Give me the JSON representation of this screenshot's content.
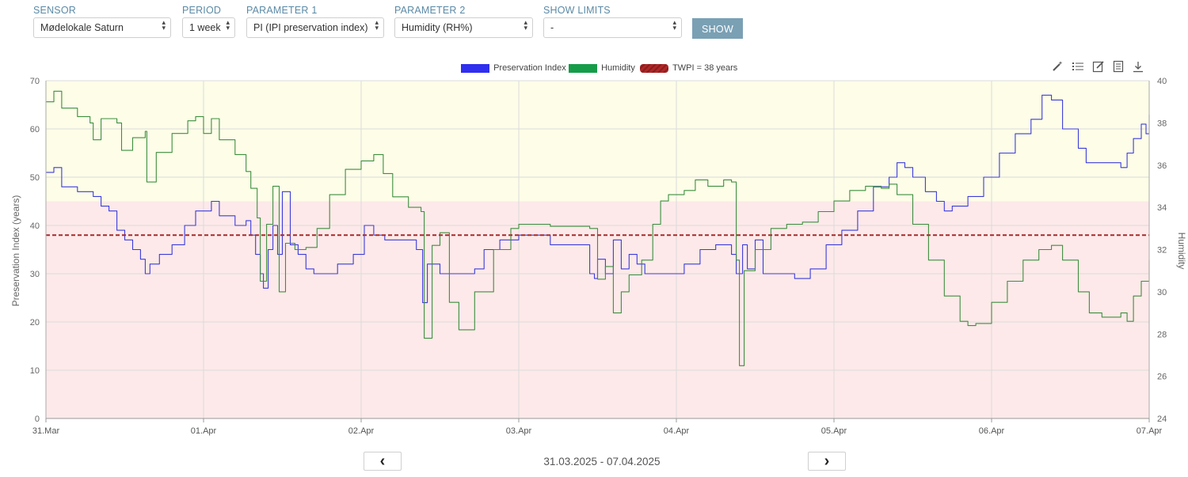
{
  "controls": {
    "sensor": {
      "label": "SENSOR",
      "value": "Mødelokale Saturn"
    },
    "period": {
      "label": "PERIOD",
      "value": "1 week"
    },
    "param1": {
      "label": "PARAMETER 1",
      "value": "PI (IPI preservation index)"
    },
    "param2": {
      "label": "PARAMETER 2",
      "value": "Humidity (RH%)"
    },
    "limits": {
      "label": "SHOW LIMITS",
      "value": "-"
    },
    "show_button": "SHOW"
  },
  "legend": {
    "pi": "Preservation Index",
    "humidity": "Humidity",
    "twpi": "TWPI = 38 years"
  },
  "toolbar": [
    "magic-wand-icon",
    "list-icon",
    "edit-icon",
    "document-icon",
    "download-icon"
  ],
  "navigation": {
    "prev": "‹",
    "next": "›",
    "range": "31.03.2025 - 07.04.2025"
  },
  "colors": {
    "pi": "#3b3bdb",
    "humidity": "#3e8e3e",
    "twpi": "#a52a2a",
    "zone_upper": "#fdfde8",
    "zone_lower": "#fde9e9"
  },
  "chart_data": {
    "type": "line",
    "xlabel": "",
    "ylabel_left": "Preservation Index (years)",
    "ylabel_right": "Humidity",
    "x_ticks": [
      "31.Mar",
      "01.Apr",
      "02.Apr",
      "03.Apr",
      "04.Apr",
      "05.Apr",
      "06.Apr",
      "07.Apr"
    ],
    "x_range_days": [
      0,
      7
    ],
    "left_ylim": [
      0,
      70
    ],
    "left_ticks": [
      0,
      10,
      20,
      30,
      40,
      50,
      60,
      70
    ],
    "right_ylim": [
      24,
      40
    ],
    "right_ticks": [
      24,
      26,
      28,
      30,
      32,
      34,
      36,
      38,
      40
    ],
    "grid": true,
    "reference_line": {
      "name": "TWPI = 38 years",
      "value": 38
    },
    "zones": [
      {
        "from": 45,
        "to": 70,
        "color": "#fdfde8"
      },
      {
        "from": 0,
        "to": 45,
        "color": "#fde9e9"
      }
    ],
    "series": [
      {
        "name": "Preservation Index",
        "axis": "left",
        "points": [
          [
            0,
            51
          ],
          [
            0.05,
            52
          ],
          [
            0.1,
            48
          ],
          [
            0.2,
            47
          ],
          [
            0.3,
            46
          ],
          [
            0.35,
            44
          ],
          [
            0.4,
            43
          ],
          [
            0.45,
            39
          ],
          [
            0.5,
            37
          ],
          [
            0.55,
            35
          ],
          [
            0.6,
            33
          ],
          [
            0.63,
            30
          ],
          [
            0.66,
            32
          ],
          [
            0.72,
            34
          ],
          [
            0.8,
            36
          ],
          [
            0.88,
            40
          ],
          [
            0.95,
            43
          ],
          [
            1.05,
            45
          ],
          [
            1.1,
            42
          ],
          [
            1.2,
            40
          ],
          [
            1.27,
            41
          ],
          [
            1.3,
            38
          ],
          [
            1.33,
            34
          ],
          [
            1.36,
            30
          ],
          [
            1.38,
            27
          ],
          [
            1.41,
            35
          ],
          [
            1.44,
            40
          ],
          [
            1.47,
            34
          ],
          [
            1.5,
            47
          ],
          [
            1.55,
            36
          ],
          [
            1.6,
            34
          ],
          [
            1.65,
            31
          ],
          [
            1.7,
            30
          ],
          [
            1.78,
            30
          ],
          [
            1.85,
            32
          ],
          [
            1.95,
            34
          ],
          [
            2.02,
            40
          ],
          [
            2.08,
            38
          ],
          [
            2.15,
            37
          ],
          [
            2.2,
            37
          ],
          [
            2.3,
            37
          ],
          [
            2.35,
            35
          ],
          [
            2.39,
            24
          ],
          [
            2.42,
            32
          ],
          [
            2.5,
            30
          ],
          [
            2.6,
            30
          ],
          [
            2.72,
            31
          ],
          [
            2.78,
            35
          ],
          [
            2.88,
            37
          ],
          [
            3.0,
            38
          ],
          [
            3.2,
            36
          ],
          [
            3.45,
            30
          ],
          [
            3.48,
            29
          ],
          [
            3.5,
            33
          ],
          [
            3.55,
            30
          ],
          [
            3.6,
            37
          ],
          [
            3.65,
            31
          ],
          [
            3.7,
            34
          ],
          [
            3.75,
            32
          ],
          [
            3.8,
            30
          ],
          [
            3.95,
            30
          ],
          [
            4.05,
            32
          ],
          [
            4.15,
            35
          ],
          [
            4.25,
            36
          ],
          [
            4.35,
            34
          ],
          [
            4.38,
            30
          ],
          [
            4.42,
            36
          ],
          [
            4.45,
            31
          ],
          [
            4.5,
            37
          ],
          [
            4.55,
            30
          ],
          [
            4.65,
            30
          ],
          [
            4.75,
            29
          ],
          [
            4.85,
            31
          ],
          [
            4.95,
            36
          ],
          [
            5.05,
            39
          ],
          [
            5.15,
            43
          ],
          [
            5.25,
            48
          ],
          [
            5.35,
            50
          ],
          [
            5.4,
            53
          ],
          [
            5.45,
            52
          ],
          [
            5.5,
            50
          ],
          [
            5.58,
            47
          ],
          [
            5.65,
            45
          ],
          [
            5.7,
            43
          ],
          [
            5.75,
            44
          ],
          [
            5.85,
            46
          ],
          [
            5.95,
            50
          ],
          [
            6.05,
            55
          ],
          [
            6.15,
            59
          ],
          [
            6.25,
            62
          ],
          [
            6.32,
            67
          ],
          [
            6.38,
            66
          ],
          [
            6.45,
            60
          ],
          [
            6.55,
            56
          ],
          [
            6.6,
            53
          ],
          [
            6.7,
            53
          ],
          [
            6.78,
            53
          ],
          [
            6.82,
            52
          ],
          [
            6.86,
            55
          ],
          [
            6.9,
            58
          ],
          [
            6.95,
            61
          ],
          [
            6.98,
            59
          ],
          [
            7.0,
            63
          ]
        ]
      },
      {
        "name": "Humidity",
        "axis": "right",
        "points": [
          [
            0,
            39
          ],
          [
            0.05,
            39.5
          ],
          [
            0.1,
            38.7
          ],
          [
            0.2,
            38.3
          ],
          [
            0.28,
            38
          ],
          [
            0.3,
            37.2
          ],
          [
            0.35,
            38.2
          ],
          [
            0.45,
            38
          ],
          [
            0.48,
            36.7
          ],
          [
            0.55,
            37.3
          ],
          [
            0.63,
            37.6
          ],
          [
            0.64,
            35.2
          ],
          [
            0.7,
            36.6
          ],
          [
            0.8,
            37.5
          ],
          [
            0.9,
            38.1
          ],
          [
            0.95,
            38.3
          ],
          [
            1.0,
            37.5
          ],
          [
            1.05,
            38.2
          ],
          [
            1.1,
            37.2
          ],
          [
            1.2,
            36.5
          ],
          [
            1.27,
            35.7
          ],
          [
            1.3,
            34.9
          ],
          [
            1.34,
            33.5
          ],
          [
            1.36,
            30.5
          ],
          [
            1.4,
            33.2
          ],
          [
            1.44,
            35
          ],
          [
            1.48,
            30
          ],
          [
            1.52,
            32.3
          ],
          [
            1.58,
            32
          ],
          [
            1.65,
            32.1
          ],
          [
            1.72,
            33
          ],
          [
            1.8,
            34.6
          ],
          [
            1.9,
            35.8
          ],
          [
            2.0,
            36.2
          ],
          [
            2.08,
            36.5
          ],
          [
            2.14,
            35.6
          ],
          [
            2.2,
            34.5
          ],
          [
            2.3,
            34
          ],
          [
            2.38,
            33.8
          ],
          [
            2.4,
            27.8
          ],
          [
            2.45,
            32.2
          ],
          [
            2.5,
            32.8
          ],
          [
            2.56,
            29.5
          ],
          [
            2.62,
            28.2
          ],
          [
            2.72,
            30
          ],
          [
            2.84,
            32
          ],
          [
            2.95,
            33
          ],
          [
            3.0,
            33.2
          ],
          [
            3.2,
            33.1
          ],
          [
            3.45,
            33
          ],
          [
            3.5,
            30.6
          ],
          [
            3.55,
            31.2
          ],
          [
            3.6,
            29
          ],
          [
            3.65,
            30
          ],
          [
            3.7,
            30.8
          ],
          [
            3.78,
            31.5
          ],
          [
            3.85,
            33.2
          ],
          [
            3.9,
            34.3
          ],
          [
            3.95,
            34.6
          ],
          [
            4.05,
            34.8
          ],
          [
            4.12,
            35.3
          ],
          [
            4.2,
            35
          ],
          [
            4.3,
            35.3
          ],
          [
            4.35,
            35.2
          ],
          [
            4.38,
            31.5
          ],
          [
            4.4,
            26.5
          ],
          [
            4.43,
            31
          ],
          [
            4.5,
            32
          ],
          [
            4.6,
            33
          ],
          [
            4.7,
            33.2
          ],
          [
            4.8,
            33.3
          ],
          [
            4.9,
            33.8
          ],
          [
            5.0,
            34.3
          ],
          [
            5.1,
            34.8
          ],
          [
            5.2,
            35
          ],
          [
            5.3,
            34.9
          ],
          [
            5.35,
            35.1
          ],
          [
            5.4,
            34.6
          ],
          [
            5.5,
            33.2
          ],
          [
            5.6,
            31.5
          ],
          [
            5.7,
            29.8
          ],
          [
            5.8,
            28.6
          ],
          [
            5.85,
            28.4
          ],
          [
            5.9,
            28.5
          ],
          [
            6.0,
            29.5
          ],
          [
            6.1,
            30.5
          ],
          [
            6.2,
            31.5
          ],
          [
            6.3,
            32
          ],
          [
            6.38,
            32.2
          ],
          [
            6.45,
            31.5
          ],
          [
            6.55,
            30
          ],
          [
            6.62,
            29
          ],
          [
            6.7,
            28.8
          ],
          [
            6.75,
            28.8
          ],
          [
            6.82,
            29
          ],
          [
            6.86,
            28.6
          ],
          [
            6.9,
            29.8
          ],
          [
            6.95,
            30.5
          ],
          [
            7.0,
            31.5
          ]
        ]
      },
      {
        "name": "TWPI = 38 years",
        "axis": "left",
        "points": [
          [
            0,
            38
          ],
          [
            7,
            38
          ]
        ]
      }
    ]
  }
}
